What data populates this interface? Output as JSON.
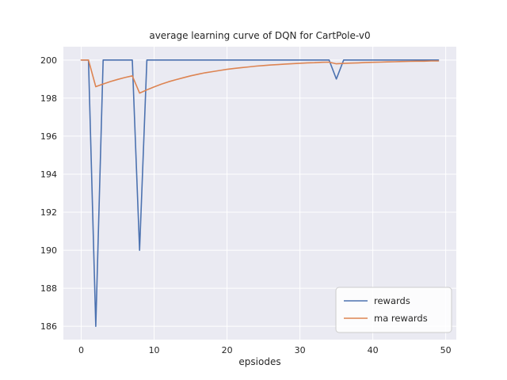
{
  "chart_data": {
    "type": "line",
    "title": "average learning curve of DQN for CartPole-v0",
    "xlabel": "epsiodes",
    "ylabel": "",
    "x": [
      0,
      1,
      2,
      3,
      4,
      5,
      6,
      7,
      8,
      9,
      10,
      11,
      12,
      13,
      14,
      15,
      16,
      17,
      18,
      19,
      20,
      21,
      22,
      23,
      24,
      25,
      26,
      27,
      28,
      29,
      30,
      31,
      32,
      33,
      34,
      35,
      36,
      37,
      38,
      39,
      40,
      41,
      42,
      43,
      44,
      45,
      46,
      47,
      48,
      49
    ],
    "series": [
      {
        "name": "rewards",
        "color": "#4c72b0",
        "values": [
          200,
          200,
          186,
          200,
          200,
          200,
          200,
          200,
          190,
          200,
          200,
          200,
          200,
          200,
          200,
          200,
          200,
          200,
          200,
          200,
          200,
          200,
          200,
          200,
          200,
          200,
          200,
          200,
          200,
          200,
          200,
          200,
          200,
          200,
          200,
          199,
          200,
          200,
          200,
          200,
          200,
          200,
          200,
          200,
          200,
          200,
          200,
          200,
          200,
          200
        ]
      },
      {
        "name": "ma rewards",
        "color": "#dd8452",
        "values": [
          200,
          200,
          198.6,
          198.74,
          198.87,
          198.98,
          199.08,
          199.17,
          198.26,
          198.43,
          198.59,
          198.73,
          198.86,
          198.97,
          199.07,
          199.17,
          199.25,
          199.33,
          199.39,
          199.45,
          199.51,
          199.56,
          199.6,
          199.64,
          199.68,
          199.71,
          199.74,
          199.76,
          199.79,
          199.81,
          199.83,
          199.85,
          199.86,
          199.88,
          199.89,
          199.8,
          199.82,
          199.84,
          199.85,
          199.87,
          199.88,
          199.89,
          199.9,
          199.91,
          199.92,
          199.93,
          199.94,
          199.94,
          199.95,
          199.95
        ]
      }
    ],
    "xlim": [
      -2.45,
      51.45
    ],
    "ylim": [
      185.3,
      200.7
    ],
    "xticks": [
      0,
      10,
      20,
      30,
      40,
      50
    ],
    "yticks": [
      186,
      188,
      190,
      192,
      194,
      196,
      198,
      200
    ],
    "grid": true,
    "legend_position": "lower right",
    "colors": {
      "plot_bg": "#eaeaf2",
      "grid": "#ffffff",
      "text": "#262626",
      "legend_bg": "#ffffff",
      "legend_border": "#cccccc"
    }
  }
}
